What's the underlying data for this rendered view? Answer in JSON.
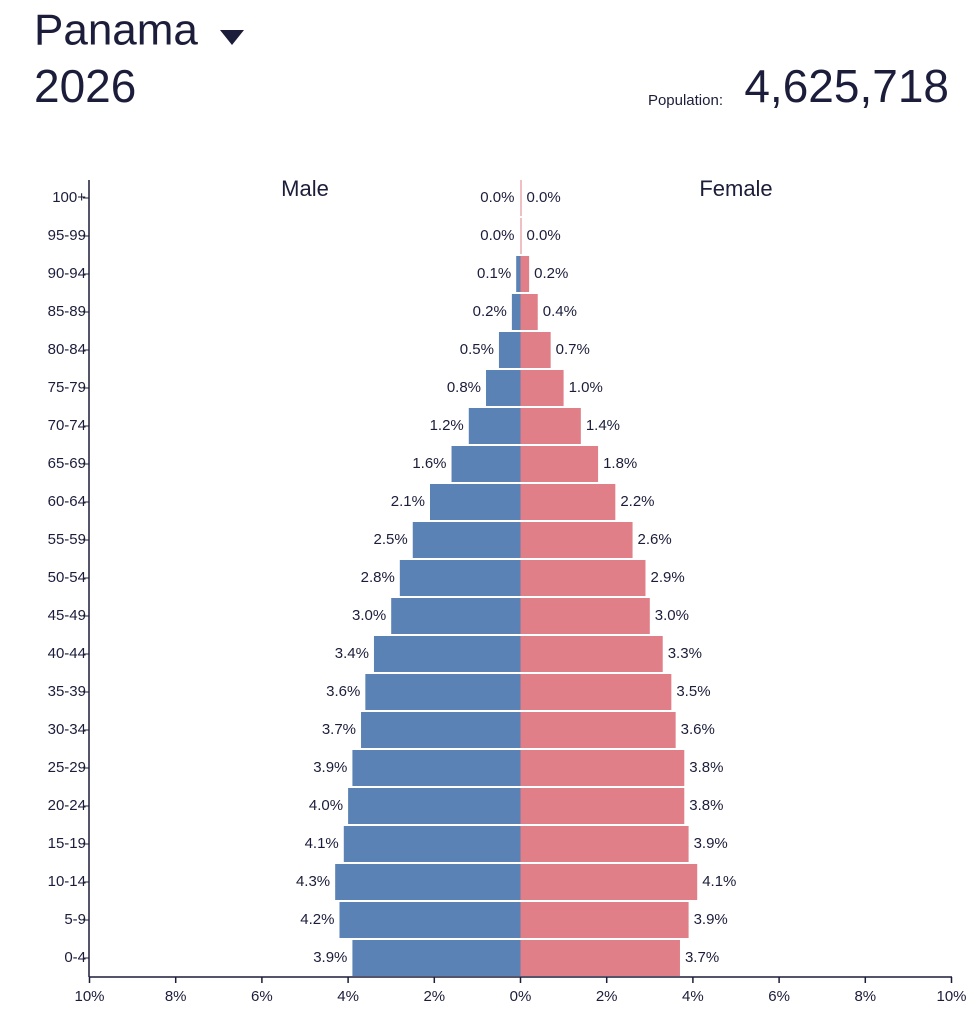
{
  "chart_data": {
    "type": "population_pyramid",
    "title": "Panama",
    "year": "2026",
    "population_label": "Population:",
    "population": "4,625,718",
    "categories": [
      "0-4",
      "5-9",
      "10-14",
      "15-19",
      "20-24",
      "25-29",
      "30-34",
      "35-39",
      "40-44",
      "45-49",
      "50-54",
      "55-59",
      "60-64",
      "65-69",
      "70-74",
      "75-79",
      "80-84",
      "85-89",
      "90-94",
      "95-99",
      "100+"
    ],
    "series": [
      {
        "name": "Male",
        "color": "#5a82b4",
        "values": [
          3.9,
          4.2,
          4.3,
          4.1,
          4.0,
          3.9,
          3.7,
          3.6,
          3.4,
          3.0,
          2.8,
          2.5,
          2.1,
          1.6,
          1.2,
          0.8,
          0.5,
          0.2,
          0.1,
          0.0,
          0.0
        ],
        "value_labels": [
          "3.9%",
          "4.2%",
          "4.3%",
          "4.1%",
          "4.0%",
          "3.9%",
          "3.7%",
          "3.6%",
          "3.4%",
          "3.0%",
          "2.8%",
          "2.5%",
          "2.1%",
          "1.6%",
          "1.2%",
          "0.8%",
          "0.5%",
          "0.2%",
          "0.1%",
          "0.0%",
          "0.0%"
        ]
      },
      {
        "name": "Female",
        "color": "#e07f88",
        "values": [
          3.7,
          3.9,
          4.1,
          3.9,
          3.8,
          3.8,
          3.6,
          3.5,
          3.3,
          3.0,
          2.9,
          2.6,
          2.2,
          1.8,
          1.4,
          1.0,
          0.7,
          0.4,
          0.2,
          0.0,
          0.0
        ],
        "value_labels": [
          "3.7%",
          "3.9%",
          "4.1%",
          "3.9%",
          "3.8%",
          "3.8%",
          "3.6%",
          "3.5%",
          "3.3%",
          "3.0%",
          "2.9%",
          "2.6%",
          "2.2%",
          "1.8%",
          "1.4%",
          "1.0%",
          "0.7%",
          "0.4%",
          "0.2%",
          "0.0%",
          "0.0%"
        ]
      }
    ],
    "male_xlim": [
      10,
      0
    ],
    "male_xticks": [
      {
        "value": 10,
        "label": "10%"
      },
      {
        "value": 8,
        "label": "8%"
      },
      {
        "value": 6,
        "label": "6%"
      },
      {
        "value": 4,
        "label": "4%"
      },
      {
        "value": 2,
        "label": "2%"
      }
    ],
    "female_xlim": [
      0,
      10
    ],
    "female_xticks": [
      {
        "value": 0,
        "label": "0%"
      },
      {
        "value": 2,
        "label": "2%"
      },
      {
        "value": 4,
        "label": "4%"
      },
      {
        "value": 6,
        "label": "6%"
      },
      {
        "value": 8,
        "label": "8%"
      },
      {
        "value": 10,
        "label": "10%"
      }
    ]
  }
}
